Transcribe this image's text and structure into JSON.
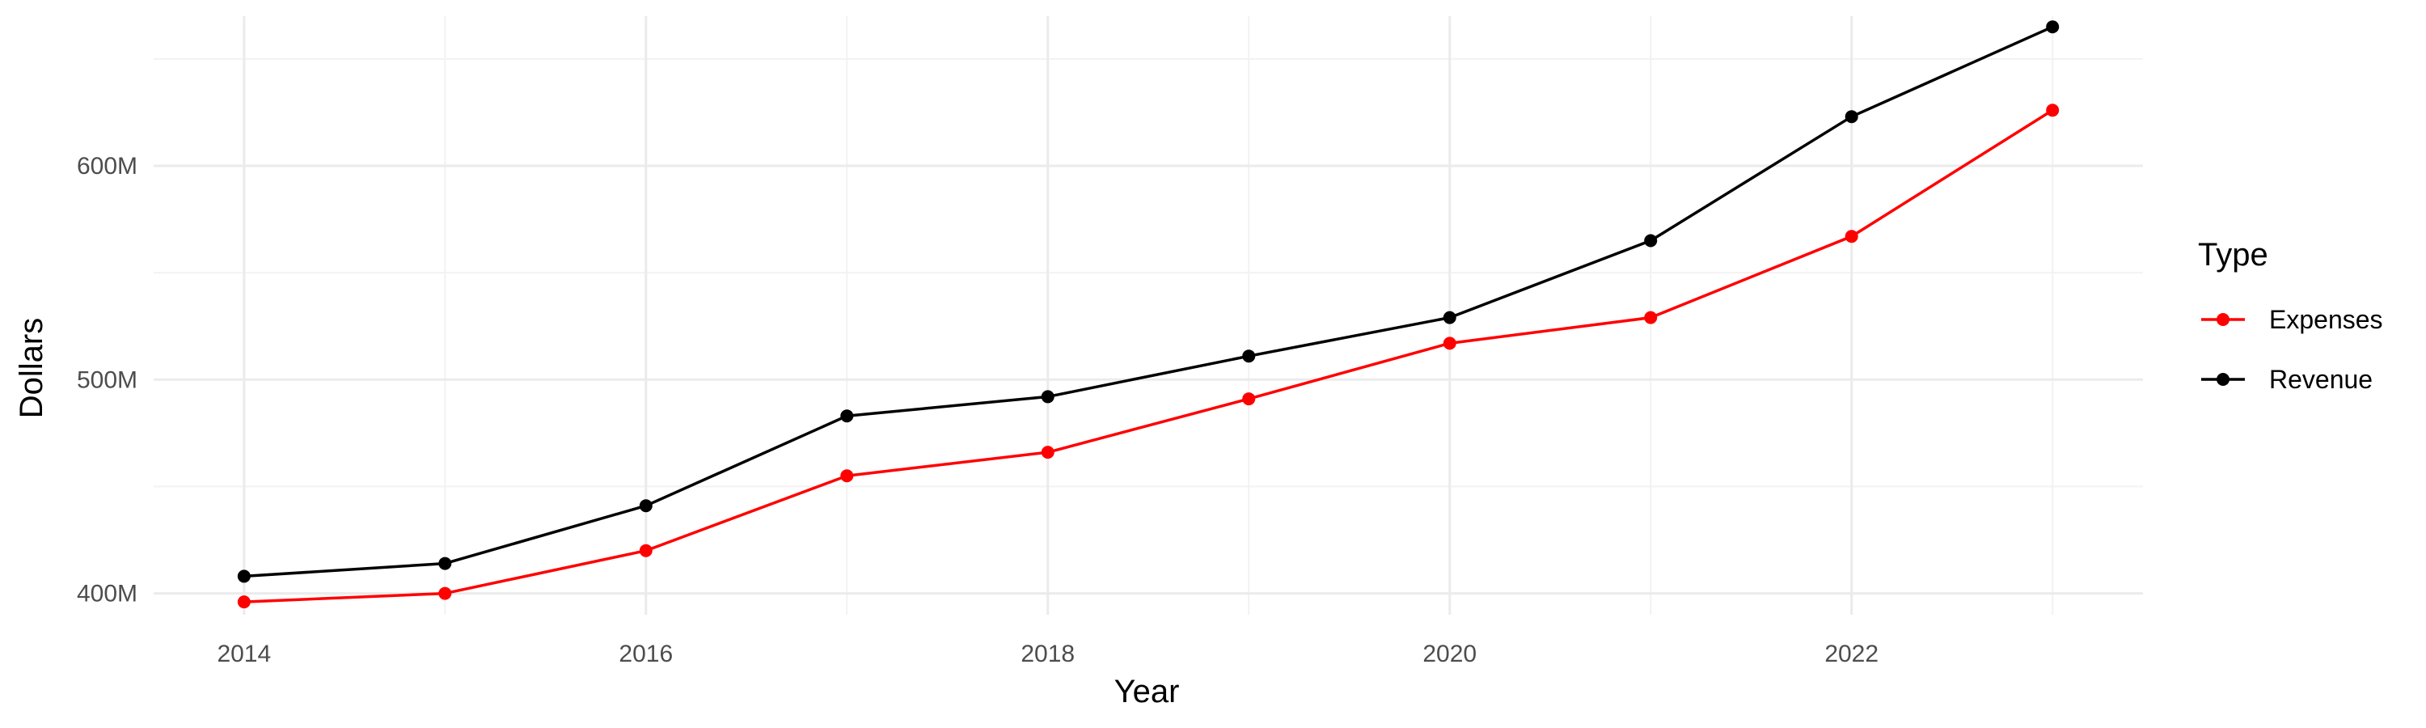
{
  "chart_data": {
    "type": "line",
    "title": "",
    "xlabel": "Year",
    "ylabel": "Dollars",
    "x": [
      2014,
      2015,
      2016,
      2017,
      2018,
      2019,
      2020,
      2021,
      2022,
      2023
    ],
    "x_ticks": [
      2014,
      2016,
      2018,
      2020,
      2022
    ],
    "y_ticks": [
      400000000,
      500000000,
      600000000
    ],
    "y_tick_labels": [
      "400M",
      "500M",
      "600M"
    ],
    "xlim": [
      2013.55,
      2023.45
    ],
    "ylim": [
      390000000,
      670000000
    ],
    "grid": true,
    "legend": {
      "title": "Type",
      "position": "right"
    },
    "series": [
      {
        "name": "Expenses",
        "color": "#ff0000",
        "values": [
          396000000,
          400000000,
          420000000,
          455000000,
          466000000,
          491000000,
          517000000,
          529000000,
          567000000,
          626000000
        ]
      },
      {
        "name": "Revenue",
        "color": "#000000",
        "values": [
          408000000,
          414000000,
          441000000,
          483000000,
          492000000,
          511000000,
          529000000,
          565000000,
          623000000,
          665000000
        ]
      }
    ]
  }
}
